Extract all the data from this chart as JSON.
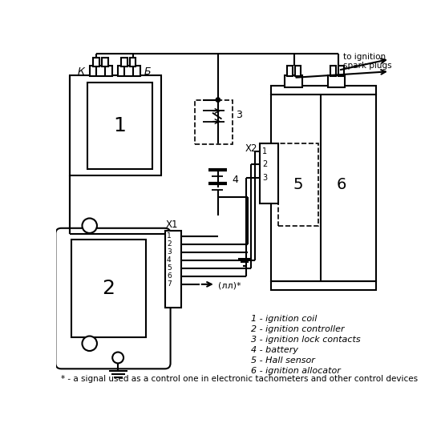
{
  "bg": "#ffffff",
  "lc": "#000000",
  "legend": [
    "1 - ignition coil",
    "2 - ignition controller",
    "3 - ignition lock contacts",
    "4 - battery",
    "5 - Hall sensor",
    "6 - ignition allocator"
  ],
  "footnote": "* - a signal used as a control one in electronic tachometers and other control devices"
}
